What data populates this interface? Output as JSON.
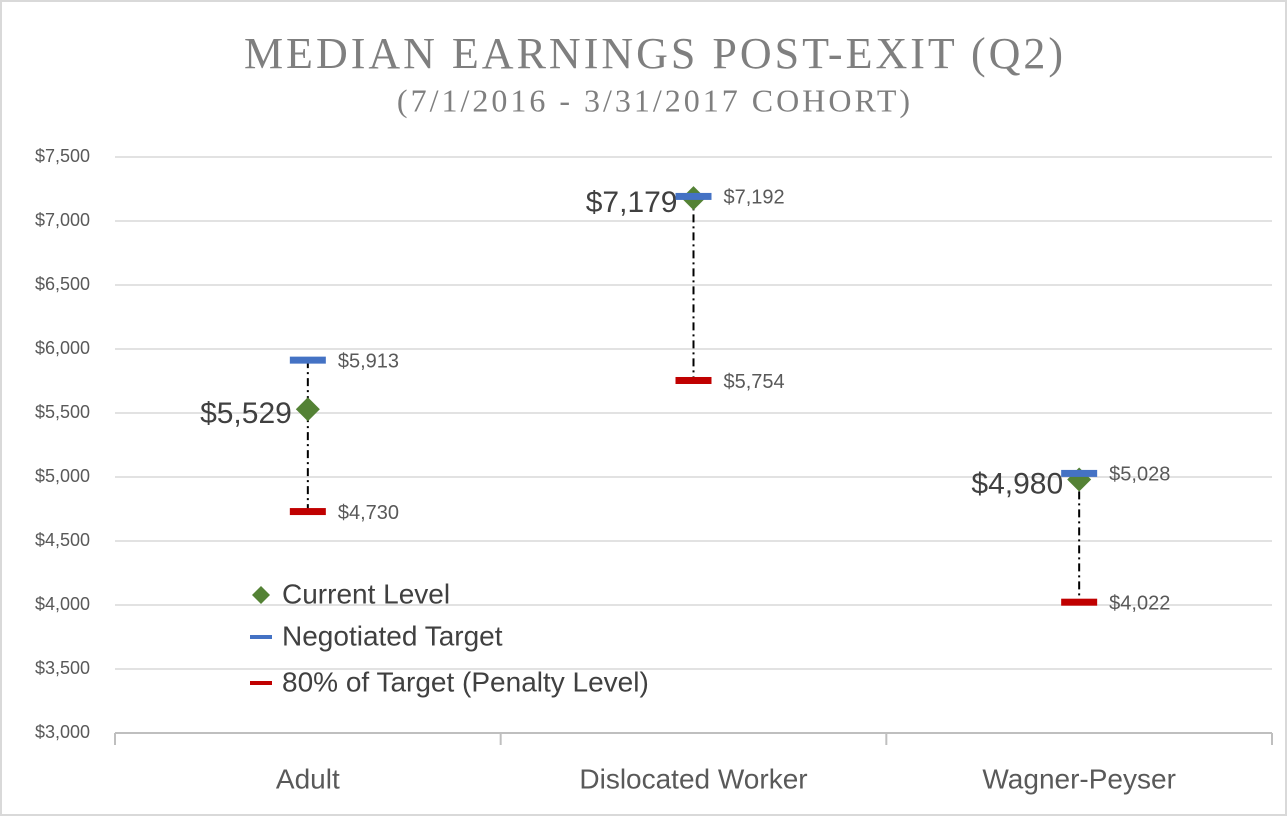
{
  "chart_data": {
    "type": "range",
    "title": "MEDIAN EARNINGS POST-EXIT (Q2)",
    "subtitle": "(7/1/2016 - 3/31/2017 COHORT)",
    "categories": [
      "Adult",
      "Dislocated Worker",
      "Wagner-Peyser"
    ],
    "series": [
      {
        "name": "Current Level",
        "color": "#548235",
        "marker": "diamond",
        "values": [
          5529,
          7179,
          4980
        ],
        "value_labels": [
          "$5,529",
          "$7,179",
          "$4,980"
        ]
      },
      {
        "name": "Negotiated Target",
        "color": "#4472c4",
        "marker": "dash",
        "values": [
          5913,
          7192,
          5028
        ],
        "value_labels": [
          "$5,913",
          "$7,192",
          "$5,028"
        ]
      },
      {
        "name": "80% of Target (Penalty Level)",
        "color": "#c00000",
        "marker": "dash",
        "values": [
          4730,
          5754,
          4022
        ],
        "value_labels": [
          "$4,730",
          "$5,754",
          "$4,022"
        ]
      }
    ],
    "ylim": [
      3000,
      7500
    ],
    "yticks": [
      {
        "value": 3000,
        "label": "$3,000"
      },
      {
        "value": 3500,
        "label": "$3,500"
      },
      {
        "value": 4000,
        "label": "$4,000"
      },
      {
        "value": 4500,
        "label": "$4,500"
      },
      {
        "value": 5000,
        "label": "$5,000"
      },
      {
        "value": 5500,
        "label": "$5,500"
      },
      {
        "value": 6000,
        "label": "$6,000"
      },
      {
        "value": 6500,
        "label": "$6,500"
      },
      {
        "value": 7000,
        "label": "$7,000"
      },
      {
        "value": 7500,
        "label": "$7,500"
      }
    ],
    "grid": true
  }
}
